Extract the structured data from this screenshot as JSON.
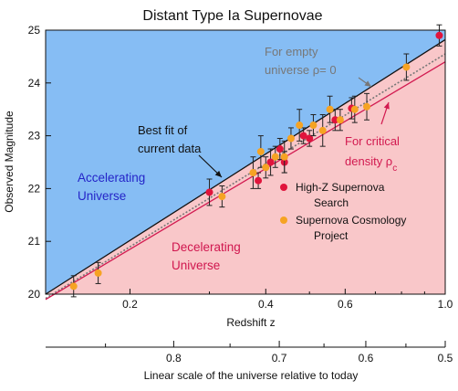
{
  "chart_data": {
    "type": "scatter",
    "title": "Distant Type Ia Supernovae",
    "xlabel": "Redshift  z",
    "ylabel": "Observed Magnitude",
    "x_scale": "log",
    "xlim": [
      0.13,
      1.0
    ],
    "ylim": [
      20,
      25
    ],
    "x_ticks": [
      {
        "v": 0.2,
        "label": "0.2"
      },
      {
        "v": 0.4,
        "label": "0.4"
      },
      {
        "v": 0.6,
        "label": "0.6"
      },
      {
        "v": 1.0,
        "label": "1.0"
      }
    ],
    "x_minor_ticks": [
      0.3,
      0.5,
      0.7,
      0.8,
      0.9
    ],
    "y_ticks": [
      20,
      21,
      22,
      23,
      24,
      25
    ],
    "grid": false,
    "secondary_axis": {
      "xlabel": "Linear scale of the universe relative to today",
      "ticks": [
        {
          "v": 0.8,
          "label": "0.8"
        },
        {
          "v": 0.7,
          "label": "0.7"
        },
        {
          "v": 0.6,
          "label": "0.6"
        },
        {
          "v": 0.5,
          "label": "0.5"
        }
      ],
      "minor_ticks": [
        0.85,
        0.75,
        0.65,
        0.55
      ]
    },
    "regions": [
      {
        "name": "Accelerating Universe",
        "lines": [
          "Accelerating",
          "Universe"
        ],
        "color": "#86bdf4",
        "text_color": "#2424c8"
      },
      {
        "name": "Decelerating Universe",
        "lines": [
          "Decelerating",
          "Universe"
        ],
        "color": "#f9c7c9",
        "text_color": "#d0164e"
      }
    ],
    "lines": [
      {
        "name": "Best fit of current data",
        "style": "solid",
        "color": "#111111",
        "points": [
          [
            0.13,
            20.0
          ],
          [
            1.0,
            24.82
          ]
        ]
      },
      {
        "name": "For empty universe ρ=0",
        "style": "dotted",
        "color": "#777777",
        "points": [
          [
            0.13,
            19.92
          ],
          [
            1.0,
            24.55
          ]
        ]
      },
      {
        "name": "For critical density ρc",
        "style": "solid",
        "color": "#d21a50",
        "points": [
          [
            0.13,
            19.9
          ],
          [
            1.0,
            24.4
          ]
        ]
      }
    ],
    "annotations": [
      {
        "lines": [
          "Best fit of",
          "current data"
        ],
        "color": "#111111"
      },
      {
        "lines": [
          "For empty",
          "universe ρ= 0"
        ],
        "color": "#777777"
      },
      {
        "lines": [
          "For critical",
          "density  ρ"
        ],
        "subscript": "c",
        "color": "#d21a50"
      }
    ],
    "series": [
      {
        "name": "High-Z Supernova Search",
        "color": "#e0143c",
        "points": [
          {
            "x": 0.3,
            "y": 21.93,
            "err": 0.25
          },
          {
            "x": 0.385,
            "y": 22.15,
            "err": 0.15
          },
          {
            "x": 0.41,
            "y": 22.5,
            "err": 0.25
          },
          {
            "x": 0.43,
            "y": 22.75,
            "err": 0.2
          },
          {
            "x": 0.44,
            "y": 22.5,
            "err": 0.2
          },
          {
            "x": 0.485,
            "y": 23.0,
            "err": 0.15
          },
          {
            "x": 0.5,
            "y": 22.95,
            "err": 0.15
          },
          {
            "x": 0.57,
            "y": 23.3,
            "err": 0.2
          },
          {
            "x": 0.62,
            "y": 23.52,
            "err": 0.2
          },
          {
            "x": 0.97,
            "y": 24.9,
            "err": 0.2
          }
        ]
      },
      {
        "name": "Supernova Cosmology Project",
        "lines": [
          "Supernova Cosmology",
          "Project"
        ],
        "color": "#f6a323",
        "points": [
          {
            "x": 0.15,
            "y": 20.15,
            "err": 0.2
          },
          {
            "x": 0.17,
            "y": 20.4,
            "err": 0.2
          },
          {
            "x": 0.32,
            "y": 21.85,
            "err": 0.2
          },
          {
            "x": 0.375,
            "y": 22.3,
            "err": 0.3
          },
          {
            "x": 0.39,
            "y": 22.7,
            "err": 0.3
          },
          {
            "x": 0.4,
            "y": 22.4,
            "err": 0.2
          },
          {
            "x": 0.42,
            "y": 22.6,
            "err": 0.2
          },
          {
            "x": 0.44,
            "y": 22.6,
            "err": 0.3
          },
          {
            "x": 0.455,
            "y": 22.95,
            "err": 0.2
          },
          {
            "x": 0.475,
            "y": 23.2,
            "err": 0.3
          },
          {
            "x": 0.51,
            "y": 23.2,
            "err": 0.2
          },
          {
            "x": 0.535,
            "y": 23.1,
            "err": 0.3
          },
          {
            "x": 0.555,
            "y": 23.5,
            "err": 0.25
          },
          {
            "x": 0.585,
            "y": 23.3,
            "err": 0.2
          },
          {
            "x": 0.63,
            "y": 23.5,
            "err": 0.25
          },
          {
            "x": 0.67,
            "y": 23.55,
            "err": 0.25
          },
          {
            "x": 0.82,
            "y": 24.3,
            "err": 0.25
          }
        ]
      }
    ]
  }
}
